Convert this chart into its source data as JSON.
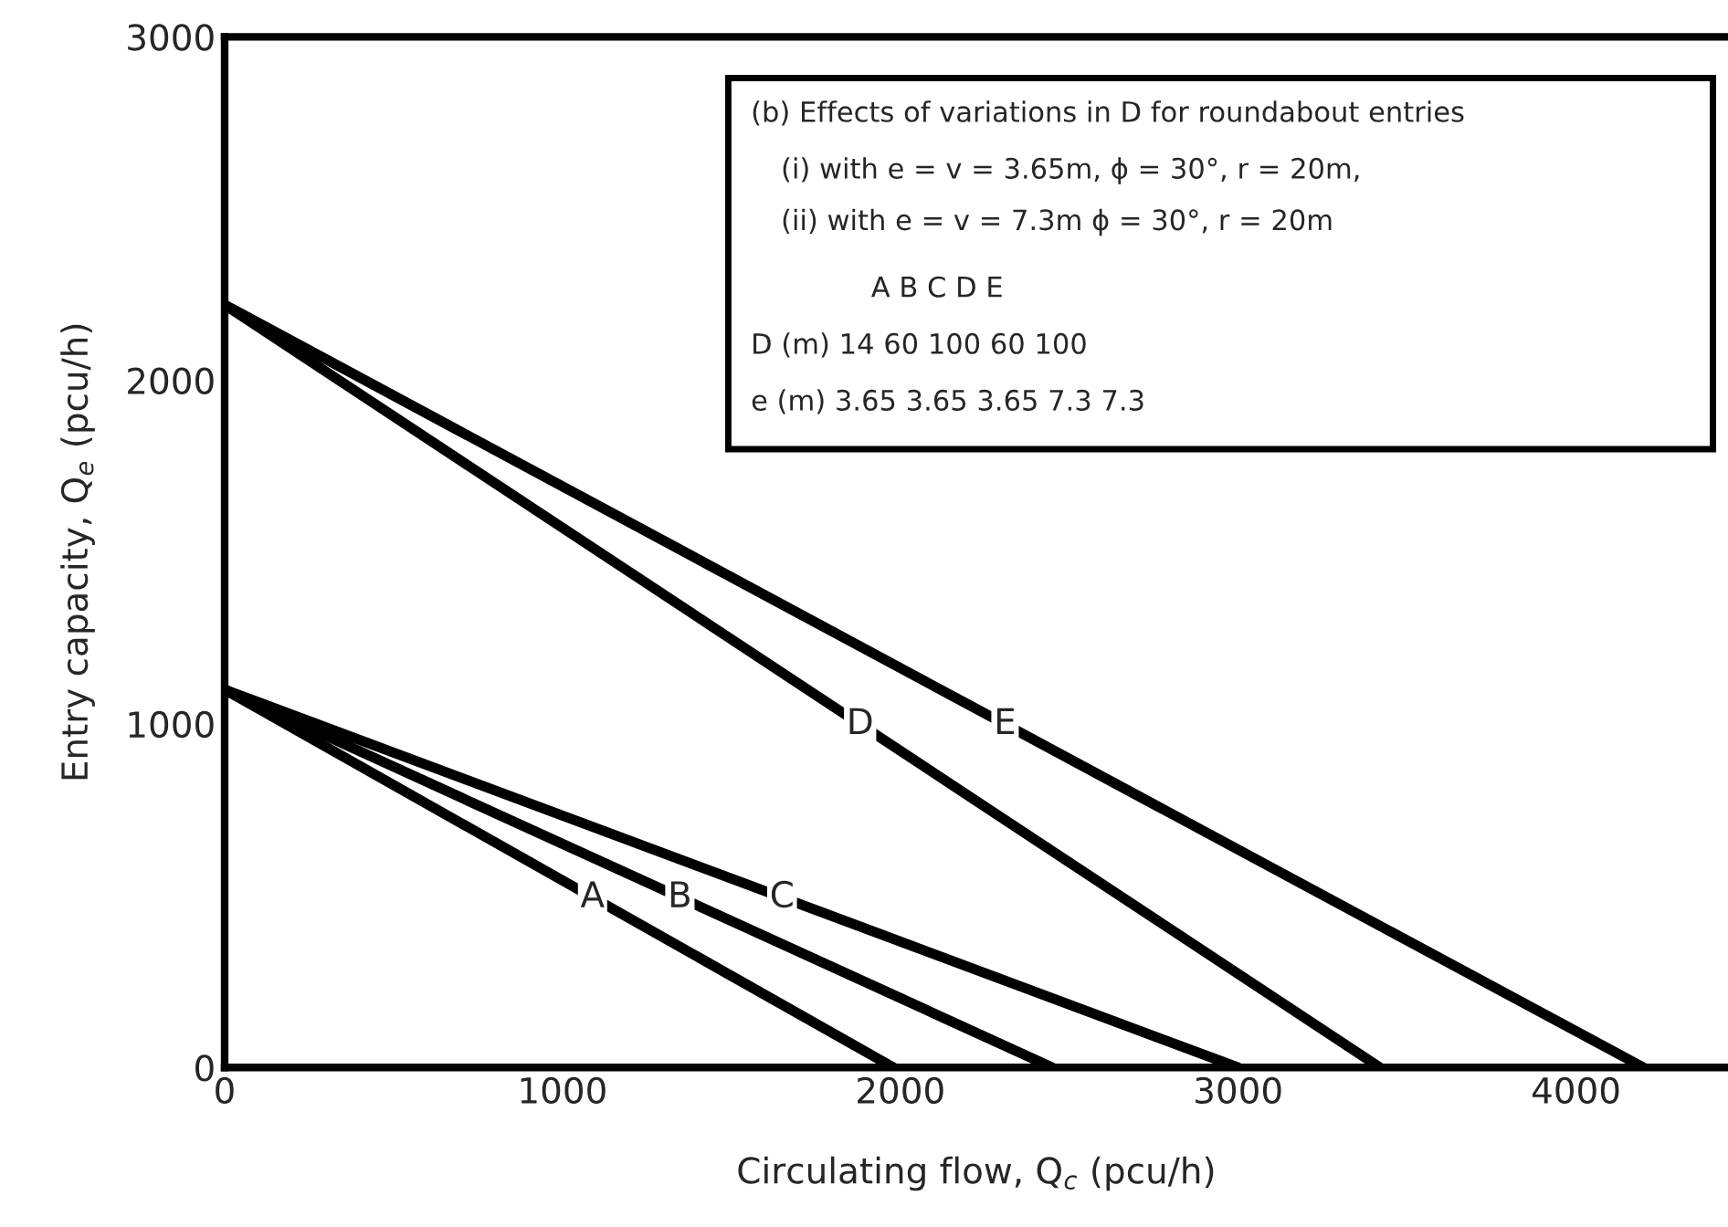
{
  "chart_data": {
    "type": "line",
    "xlabel": "Circulating flow, Q$_{c}$ (pcu/h)",
    "ylabel": "Entry capacity, Q$_{e}$ (pcu/h)",
    "xlim": [
      0,
      4450
    ],
    "xticks": [
      0,
      1000,
      2000,
      3000,
      4000
    ],
    "ylim": [
      0,
      3000
    ],
    "yticks": [
      0,
      1000,
      2000,
      3000
    ],
    "grid": false,
    "marker": "none",
    "line_style": "solid",
    "series": [
      {
        "name": "A",
        "color": "#000000",
        "x": [
          0,
          1980
        ],
        "values": [
          1100,
          0
        ]
      },
      {
        "name": "B",
        "color": "#000000",
        "x": [
          0,
          2450
        ],
        "values": [
          1100,
          0
        ]
      },
      {
        "name": "C",
        "color": "#000000",
        "x": [
          0,
          3000
        ],
        "values": [
          1100,
          0
        ]
      },
      {
        "name": "D",
        "color": "#000000",
        "x": [
          0,
          3420
        ],
        "values": [
          2220,
          0
        ]
      },
      {
        "name": "E",
        "color": "#000000",
        "x": [
          0,
          4200
        ],
        "values": [
          2220,
          0
        ]
      }
    ],
    "annotations": [
      "(b) Effects of variations in D for roundabout entries",
      "(i) with e = v = 3.65m, ϕ = 30°, r = 20m,",
      "(ii) with e = v = 7.3m ϕ = 30°, r = 20m",
      "A B C D E",
      "D (m) 14 60 100 60 100",
      "e (m) 3.65 3.65 3.65 7.3 7.3"
    ]
  }
}
